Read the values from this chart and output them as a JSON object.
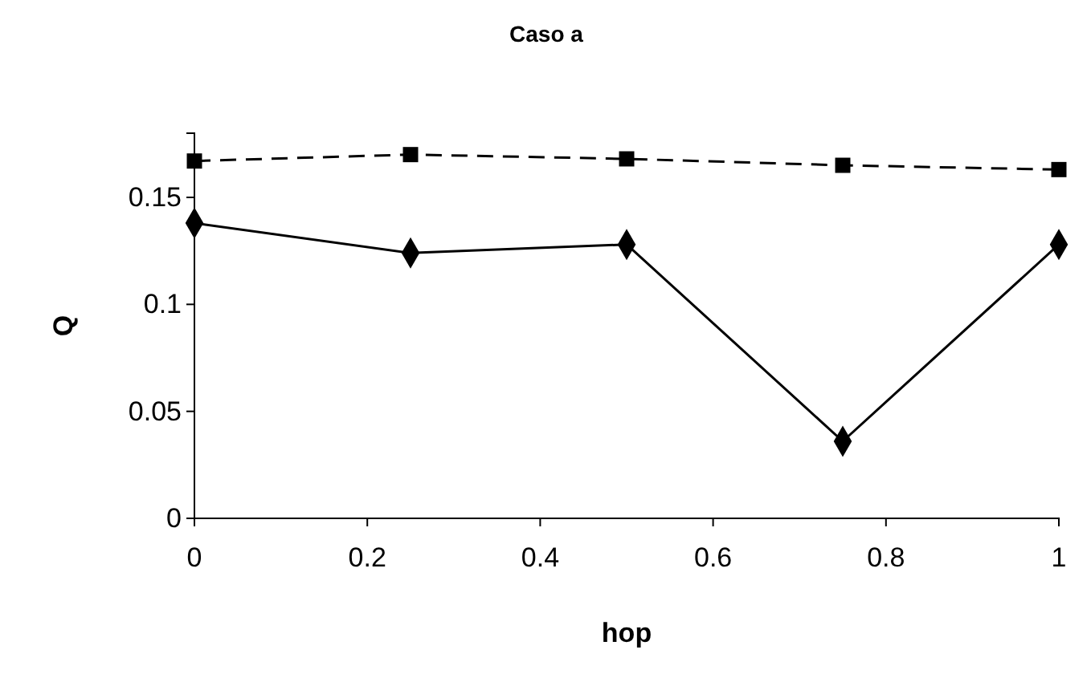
{
  "chart_data": {
    "type": "line",
    "title": "Caso a",
    "xlabel": "hop",
    "ylabel": "Q",
    "x": [
      0,
      0.25,
      0.5,
      0.75,
      1
    ],
    "xlim": [
      0,
      1
    ],
    "xticks": [
      0,
      0.2,
      0.4,
      0.6,
      0.8,
      1
    ],
    "ylim": [
      0,
      0.18
    ],
    "yticks": [
      0,
      0.05,
      0.1,
      0.15
    ],
    "series": [
      {
        "color": "#000000",
        "marker": "diamond",
        "line_style": "solid",
        "values": [
          0.138,
          0.124,
          0.128,
          0.036,
          0.128
        ]
      },
      {
        "color": "#000000",
        "marker": "square",
        "line_style": "dashed",
        "values": [
          0.167,
          0.17,
          0.168,
          0.165,
          0.163
        ]
      }
    ]
  }
}
